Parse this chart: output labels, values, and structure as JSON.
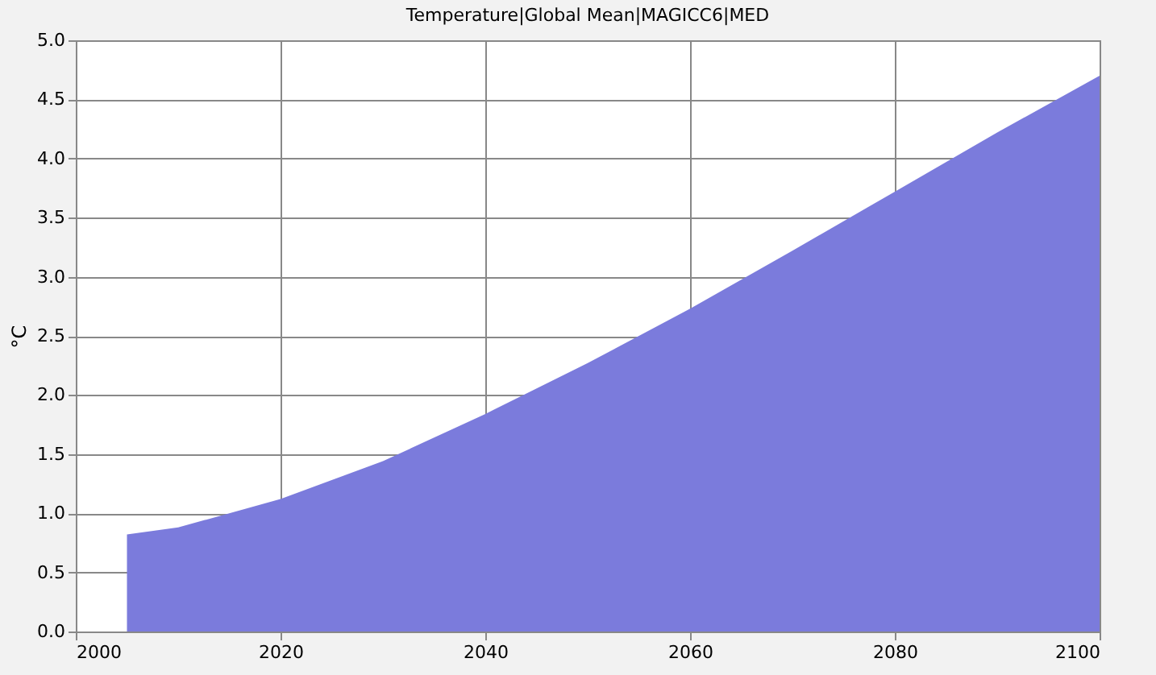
{
  "chart_data": {
    "type": "area",
    "title": "Temperature|Global Mean|MAGICC6|MED",
    "ylabel": "°C",
    "x": [
      2005,
      2010,
      2020,
      2030,
      2040,
      2050,
      2060,
      2070,
      2080,
      2090,
      2100
    ],
    "series": [
      {
        "color": "#7b7bdc",
        "values": [
          0.82,
          0.88,
          1.12,
          1.44,
          1.84,
          2.27,
          2.73,
          3.22,
          3.72,
          4.22,
          4.7
        ]
      }
    ],
    "xlim": [
      2000,
      2100
    ],
    "xticks": [
      2000,
      2020,
      2040,
      2060,
      2080,
      2100
    ],
    "ylim": [
      0,
      5
    ],
    "yticks": [
      {
        "value": 0,
        "label": "0.0"
      },
      0.5,
      {
        "value": 1,
        "label": "1.0"
      },
      1.5,
      {
        "value": 2,
        "label": "2.0"
      },
      2.5,
      {
        "value": 3,
        "label": "3.0"
      },
      3.5,
      {
        "value": 4,
        "label": "4.0"
      },
      4.5,
      {
        "value": 5,
        "label": "5.0"
      }
    ],
    "grid": true
  }
}
